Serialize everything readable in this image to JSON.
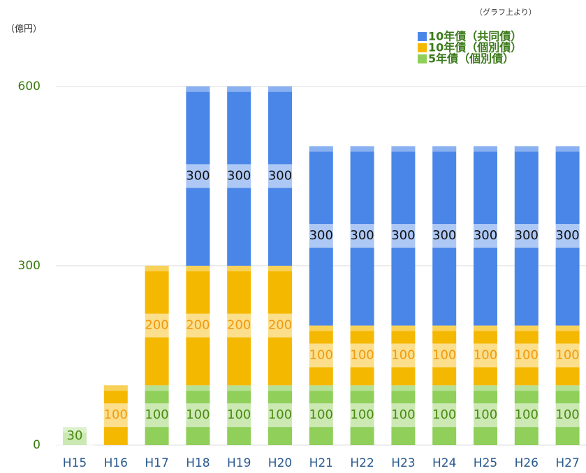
{
  "chart_data": {
    "type": "stacked_bar",
    "unit_label": "（億円）",
    "note": "（グラフ上より）",
    "categories": [
      "H15",
      "H16",
      "H17",
      "H18",
      "H19",
      "H20",
      "H21",
      "H22",
      "H23",
      "H24",
      "H25",
      "H26",
      "H27"
    ],
    "series": [
      {
        "name": "5年債（個別債）",
        "color": "#8fcf5a",
        "label_color": "#4a8a10",
        "values": [
          30,
          null,
          100,
          100,
          100,
          100,
          100,
          100,
          100,
          100,
          100,
          100,
          100
        ]
      },
      {
        "name": "10年債（個別債）",
        "color": "#f5b800",
        "label_color": "#f09a10",
        "values": [
          null,
          100,
          200,
          200,
          200,
          200,
          100,
          100,
          100,
          100,
          100,
          100,
          100
        ]
      },
      {
        "name": "10年債（共同債）",
        "color": "#4a86e8",
        "label_color": "#111111",
        "values": [
          null,
          null,
          null,
          300,
          300,
          300,
          300,
          300,
          300,
          300,
          300,
          300,
          300
        ]
      }
    ],
    "ylim": [
      0,
      700
    ],
    "yticks": [
      0,
      300,
      600
    ],
    "grid": true
  }
}
